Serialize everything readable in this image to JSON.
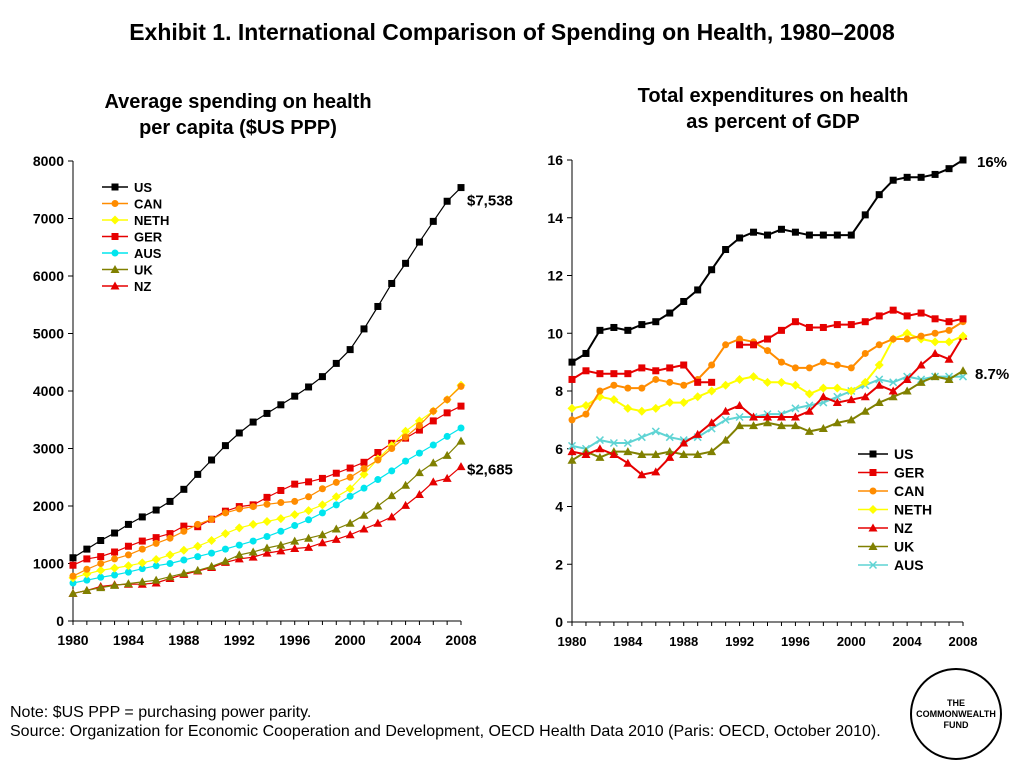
{
  "title": "Exhibit 1. International Comparison of Spending on Health, 1980–2008",
  "chart_data": [
    {
      "type": "line",
      "title_lines": [
        "Average spending on health",
        "per capita ($US PPP)"
      ],
      "xlabel": "",
      "ylabel": "",
      "xlim": [
        1980,
        2008
      ],
      "ylim": [
        0,
        8000
      ],
      "x_ticks": [
        1980,
        1984,
        1988,
        1992,
        1996,
        2000,
        2004,
        2008
      ],
      "y_ticks": [
        0,
        1000,
        2000,
        3000,
        4000,
        5000,
        6000,
        7000,
        8000
      ],
      "legend_position": "top-left",
      "annotations": [
        "$7,538",
        "$2,685"
      ],
      "x": [
        1980,
        1981,
        1982,
        1983,
        1984,
        1985,
        1986,
        1987,
        1988,
        1989,
        1990,
        1991,
        1992,
        1993,
        1994,
        1995,
        1996,
        1997,
        1998,
        1999,
        2000,
        2001,
        2002,
        2003,
        2004,
        2005,
        2006,
        2007,
        2008
      ],
      "series": [
        {
          "name": "US",
          "color": "#000000",
          "marker": "square",
          "values": [
            1100,
            1250,
            1400,
            1530,
            1680,
            1810,
            1930,
            2080,
            2290,
            2550,
            2800,
            3050,
            3270,
            3460,
            3610,
            3760,
            3910,
            4070,
            4250,
            4480,
            4720,
            5080,
            5470,
            5870,
            6220,
            6590,
            6950,
            7300,
            7538
          ]
        },
        {
          "name": "CAN",
          "color": "#ff8c00",
          "marker": "circle",
          "values": [
            780,
            900,
            1000,
            1080,
            1150,
            1250,
            1350,
            1440,
            1560,
            1680,
            1770,
            1880,
            1950,
            1990,
            2030,
            2060,
            2080,
            2160,
            2300,
            2410,
            2500,
            2650,
            2800,
            3000,
            3200,
            3400,
            3650,
            3850,
            4080
          ]
        },
        {
          "name": "NETH",
          "color": "#ffff00",
          "marker": "diamond",
          "values": [
            750,
            820,
            880,
            920,
            960,
            1010,
            1070,
            1150,
            1230,
            1300,
            1400,
            1520,
            1620,
            1680,
            1730,
            1780,
            1850,
            1920,
            2020,
            2160,
            2300,
            2550,
            2820,
            3050,
            3300,
            3480,
            3650,
            3850,
            4100
          ]
        },
        {
          "name": "GER",
          "color": "#e60000",
          "marker": "square",
          "values": [
            970,
            1080,
            1120,
            1200,
            1300,
            1390,
            1450,
            1520,
            1650,
            1640,
            1770,
            1910,
            1990,
            2020,
            2150,
            2270,
            2380,
            2420,
            2480,
            2570,
            2660,
            2760,
            2930,
            3090,
            3180,
            3320,
            3480,
            3620,
            3737
          ]
        },
        {
          "name": "AUS",
          "color": "#00e5ee",
          "marker": "circle",
          "values": [
            660,
            710,
            760,
            800,
            850,
            910,
            960,
            1000,
            1060,
            1120,
            1180,
            1250,
            1320,
            1390,
            1470,
            1560,
            1660,
            1760,
            1880,
            2020,
            2170,
            2310,
            2460,
            2610,
            2780,
            2920,
            3060,
            3210,
            3357
          ]
        },
        {
          "name": "UK",
          "color": "#808000",
          "marker": "triangle",
          "values": [
            480,
            530,
            580,
            620,
            650,
            680,
            710,
            770,
            830,
            880,
            950,
            1040,
            1150,
            1200,
            1270,
            1320,
            1390,
            1440,
            1500,
            1600,
            1700,
            1840,
            2000,
            2180,
            2360,
            2580,
            2750,
            2880,
            3129
          ]
        },
        {
          "name": "NZ",
          "color": "#e60000",
          "marker": "triangle",
          "values": [
            480,
            530,
            600,
            630,
            640,
            640,
            660,
            740,
            810,
            870,
            930,
            1020,
            1080,
            1110,
            1180,
            1220,
            1260,
            1280,
            1360,
            1420,
            1500,
            1600,
            1700,
            1810,
            2010,
            2200,
            2420,
            2480,
            2685
          ]
        }
      ]
    },
    {
      "type": "line",
      "title_lines": [
        "Total expenditures on health",
        "as percent of GDP"
      ],
      "xlabel": "",
      "ylabel": "",
      "xlim": [
        1980,
        2008
      ],
      "ylim": [
        0,
        16
      ],
      "x_ticks": [
        1980,
        1984,
        1988,
        1992,
        1996,
        2000,
        2004,
        2008
      ],
      "y_ticks": [
        0,
        2,
        4,
        6,
        8,
        10,
        12,
        14,
        16
      ],
      "legend_position": "bottom-right",
      "annotations": [
        "16%",
        "8.7%"
      ],
      "x": [
        1980,
        1981,
        1982,
        1983,
        1984,
        1985,
        1986,
        1987,
        1988,
        1989,
        1990,
        1991,
        1992,
        1993,
        1994,
        1995,
        1996,
        1997,
        1998,
        1999,
        2000,
        2001,
        2002,
        2003,
        2004,
        2005,
        2006,
        2007,
        2008
      ],
      "series": [
        {
          "name": "US",
          "color": "#000000",
          "marker": "square",
          "values": [
            9.0,
            9.3,
            10.1,
            10.2,
            10.1,
            10.3,
            10.4,
            10.7,
            11.1,
            11.5,
            12.2,
            12.9,
            13.3,
            13.5,
            13.4,
            13.6,
            13.5,
            13.4,
            13.4,
            13.4,
            13.4,
            14.1,
            14.8,
            15.3,
            15.4,
            15.4,
            15.5,
            15.7,
            16.0
          ]
        },
        {
          "name": "GER",
          "color": "#e60000",
          "marker": "square",
          "values": [
            8.4,
            8.7,
            8.6,
            8.6,
            8.6,
            8.8,
            8.7,
            8.8,
            8.9,
            8.3,
            8.3,
            null,
            9.6,
            9.6,
            9.8,
            10.1,
            10.4,
            10.2,
            10.2,
            10.3,
            10.3,
            10.4,
            10.6,
            10.8,
            10.6,
            10.7,
            10.5,
            10.4,
            10.5
          ]
        },
        {
          "name": "CAN",
          "color": "#ff8c00",
          "marker": "circle",
          "values": [
            7.0,
            7.2,
            8.0,
            8.2,
            8.1,
            8.1,
            8.4,
            8.3,
            8.2,
            8.4,
            8.9,
            9.6,
            9.8,
            9.7,
            9.4,
            9.0,
            8.8,
            8.8,
            9.0,
            8.9,
            8.8,
            9.3,
            9.6,
            9.8,
            9.8,
            9.9,
            10.0,
            10.1,
            10.4
          ]
        },
        {
          "name": "NETH",
          "color": "#ffff00",
          "marker": "diamond",
          "values": [
            7.4,
            7.5,
            7.8,
            7.7,
            7.4,
            7.3,
            7.4,
            7.6,
            7.6,
            7.8,
            8.0,
            8.2,
            8.4,
            8.5,
            8.3,
            8.3,
            8.2,
            7.9,
            8.1,
            8.1,
            8.0,
            8.3,
            8.9,
            9.8,
            10.0,
            9.8,
            9.7,
            9.7,
            9.9
          ]
        },
        {
          "name": "NZ",
          "color": "#e60000",
          "marker": "triangle",
          "values": [
            5.9,
            5.8,
            6.0,
            5.8,
            5.5,
            5.1,
            5.2,
            5.7,
            6.2,
            6.5,
            6.9,
            7.3,
            7.5,
            7.1,
            7.1,
            7.1,
            7.1,
            7.3,
            7.8,
            7.6,
            7.7,
            7.8,
            8.2,
            8.0,
            8.4,
            8.9,
            9.3,
            9.1,
            9.9
          ]
        },
        {
          "name": "UK",
          "color": "#808000",
          "marker": "triangle",
          "values": [
            5.6,
            5.9,
            5.7,
            5.9,
            5.9,
            5.8,
            5.8,
            5.9,
            5.8,
            5.8,
            5.9,
            6.3,
            6.8,
            6.8,
            6.9,
            6.8,
            6.8,
            6.6,
            6.7,
            6.9,
            7.0,
            7.3,
            7.6,
            7.8,
            8.0,
            8.3,
            8.5,
            8.4,
            8.7
          ]
        },
        {
          "name": "AUS",
          "color": "#5fd4d4",
          "marker": "x",
          "values": [
            6.1,
            6.0,
            6.3,
            6.2,
            6.2,
            6.4,
            6.6,
            6.4,
            6.3,
            6.4,
            6.7,
            7.0,
            7.1,
            7.1,
            7.2,
            7.2,
            7.4,
            7.5,
            7.6,
            7.8,
            8.0,
            8.2,
            8.4,
            8.3,
            8.5,
            8.4,
            8.5,
            8.5,
            8.5
          ]
        }
      ]
    }
  ],
  "footer": {
    "note": "Note: $US PPP = purchasing power parity.",
    "source": "Source: Organization for Economic Cooperation and Development, OECD Health Data 2010 (Paris: OECD, October 2010)."
  },
  "logo": {
    "lines": [
      "THE",
      "COMMONWEALTH",
      "FUND"
    ]
  }
}
